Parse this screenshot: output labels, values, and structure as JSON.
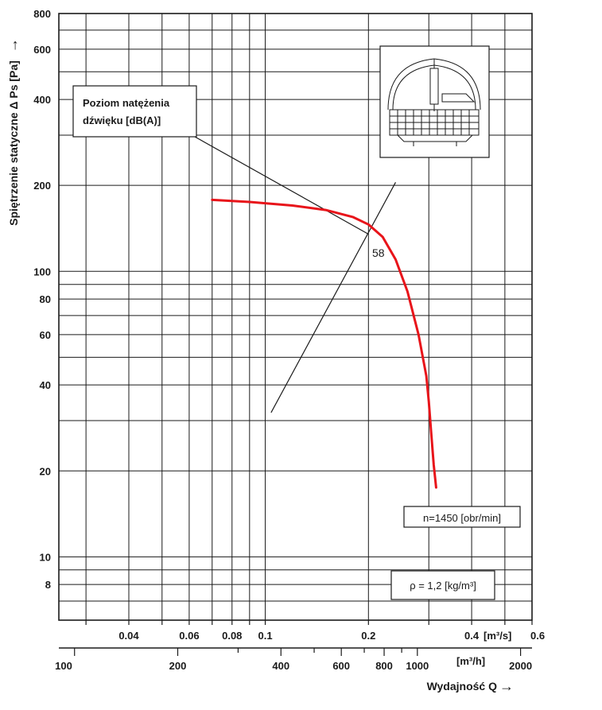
{
  "chart_data": {
    "type": "line",
    "x_scale": "log",
    "y_scale": "log",
    "grid": true,
    "xlim_m3s": [
      0.025,
      0.6
    ],
    "ylim": [
      6,
      800
    ],
    "ylabel": "Spiętrzenie statyczne Δ Ps [Pa]",
    "xlabel": "Wydajność Q",
    "x_unit_top": "[m³/s]",
    "x_unit_bottom": "[m³/h]",
    "y_ticks": [
      "8",
      "10",
      "20",
      "40",
      "60",
      "80",
      "100",
      "200",
      "400",
      "600",
      "800"
    ],
    "y_tick_values": [
      8,
      10,
      20,
      40,
      60,
      80,
      100,
      200,
      400,
      600,
      800
    ],
    "x_ticks_top": [
      "0.04",
      "0.06",
      "0.08",
      "0.1",
      "0.2",
      "0.4",
      "0.6"
    ],
    "x_tick_values_top": [
      0.04,
      0.06,
      0.08,
      0.1,
      0.2,
      0.4,
      0.6
    ],
    "x_ticks_bottom": [
      "100",
      "200",
      "400",
      "600",
      "800",
      "1000",
      "2000"
    ],
    "x_tick_values_bottom": [
      100,
      200,
      400,
      600,
      800,
      1000,
      2000
    ],
    "series": [
      {
        "color": "#e8141a",
        "points": [
          [
            0.07,
            178
          ],
          [
            0.09,
            175
          ],
          [
            0.12,
            170
          ],
          [
            0.15,
            164
          ],
          [
            0.18,
            155
          ],
          [
            0.2,
            146
          ],
          [
            0.22,
            132
          ],
          [
            0.24,
            110
          ],
          [
            0.26,
            85
          ],
          [
            0.28,
            60
          ],
          [
            0.295,
            43
          ],
          [
            0.3,
            35
          ],
          [
            0.305,
            27
          ],
          [
            0.31,
            21
          ],
          [
            0.315,
            17.5
          ]
        ]
      }
    ],
    "sound_line": {
      "color": "#1a1a1a",
      "points": [
        [
          0.104,
          32
        ],
        [
          0.24,
          205
        ]
      ]
    },
    "annotations": {
      "sound_label_line1": "Poziom natężenia",
      "sound_label_line2": "dźwięku [dB(A)]",
      "curve_point_label": "58",
      "curve_point_color": "#e8141a",
      "speed_label": "n=1450 [obr/min]",
      "density_label": "ρ = 1,2 [kg/m³]"
    },
    "label_pointer_end": [
      0.2,
      135
    ],
    "curve_label_point": [
      0.205,
      120
    ]
  },
  "device_icon": "roof-fan-diagram-icon",
  "ylabel_arrow": "→",
  "xlabel_arrow": "→"
}
